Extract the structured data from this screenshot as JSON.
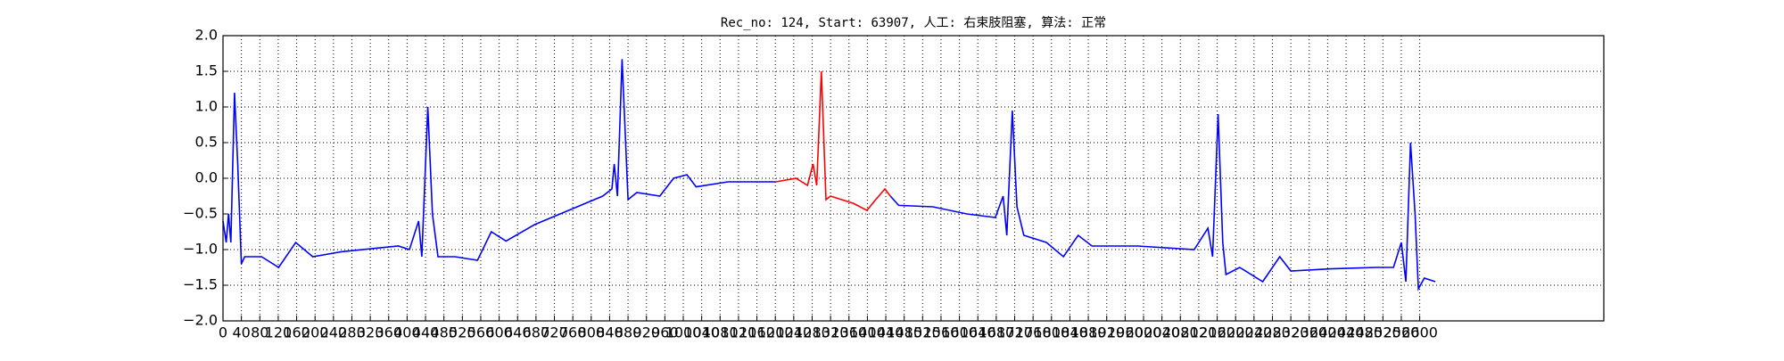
{
  "chart_data": {
    "type": "line",
    "title": "Rec_no: 124, Start: 63907, 人工: 右束肢阻塞, 算法: 正常",
    "xlim": [
      0,
      3000
    ],
    "ylim": [
      -2.0,
      2.0
    ],
    "yticks": [
      {
        "value": -2.0,
        "label": "−2.0"
      },
      {
        "value": -1.5,
        "label": "−1.5"
      },
      {
        "value": -1.0,
        "label": "−1.0"
      },
      {
        "value": -0.5,
        "label": "−0.5"
      },
      {
        "value": 0.0,
        "label": "0.0"
      },
      {
        "value": 0.5,
        "label": "0.5"
      },
      {
        "value": 1.0,
        "label": "1.0"
      },
      {
        "value": 1.5,
        "label": "1.5"
      },
      {
        "value": 2.0,
        "label": "2.0"
      }
    ],
    "xticks": [
      0,
      40,
      80,
      120,
      160,
      200,
      240,
      280,
      320,
      360,
      400,
      440,
      480,
      520,
      560,
      600,
      640,
      680,
      720,
      760,
      800,
      840,
      880,
      920,
      960,
      1000,
      1040,
      1080,
      1120,
      1160,
      1200,
      1240,
      1280,
      1320,
      1360,
      1400,
      1440,
      1480,
      1520,
      1560,
      1600,
      1640,
      1680,
      1720,
      1760,
      1800,
      1840,
      1880,
      1920,
      1960,
      2000,
      2040,
      2080,
      2120,
      2160,
      2200,
      2240,
      2280,
      2320,
      2360,
      2400,
      2440,
      2480,
      2520,
      2560,
      2600
    ],
    "grid": true,
    "series": [
      {
        "color": "#0000ff",
        "x": [
          0,
          7,
          12,
          17,
          25,
          32,
          40,
          47,
          84,
          121,
          158,
          195,
          257,
          381,
          405,
          425,
          432,
          445,
          455,
          467,
          504,
          553,
          583,
          615,
          677,
          751,
          825,
          845,
          850,
          857,
          867,
          880,
          899,
          949,
          979,
          1008,
          1028,
          1097,
          1201,
          null,
          1450,
          1468,
          1542,
          1616,
          1678,
          1695,
          1703,
          1715,
          1725,
          1740,
          1789,
          1826,
          1858,
          1888,
          1987,
          2110,
          2140,
          2150,
          2162,
          2172,
          2179,
          2209,
          2259,
          2296,
          2320,
          2407,
          2506,
          2543,
          2560,
          2570,
          2580,
          2590,
          2597,
          2610,
          2634
        ],
        "values": [
          -0.6,
          -0.9,
          -0.5,
          -0.9,
          1.2,
          0.2,
          -1.2,
          -1.1,
          -1.1,
          -1.25,
          -0.9,
          -1.1,
          -1.03,
          -0.95,
          -1.0,
          -0.6,
          -1.1,
          1.0,
          -0.5,
          -1.1,
          -1.1,
          -1.15,
          -0.75,
          -0.88,
          -0.65,
          -0.45,
          -0.25,
          -0.15,
          0.2,
          -0.25,
          1.67,
          -0.3,
          -0.2,
          -0.25,
          0.0,
          0.05,
          -0.12,
          -0.05,
          -0.05,
          null,
          -0.25,
          -0.38,
          -0.4,
          -0.5,
          -0.55,
          -0.25,
          -0.8,
          0.95,
          -0.4,
          -0.8,
          -0.9,
          -1.1,
          -0.8,
          -0.95,
          -0.95,
          -1.0,
          -0.7,
          -1.1,
          0.9,
          -0.9,
          -1.35,
          -1.25,
          -1.45,
          -1.1,
          -1.3,
          -1.27,
          -1.25,
          -1.25,
          -0.9,
          -1.45,
          0.5,
          -0.5,
          -1.55,
          -1.4,
          -1.45
        ]
      },
      {
        "color": "#ff0000",
        "x": [
          1201,
          1245,
          1270,
          1282,
          1290,
          1300,
          1310,
          1320,
          1369,
          1399,
          1418,
          1438,
          1450
        ],
        "values": [
          -0.05,
          0.0,
          -0.1,
          0.2,
          -0.1,
          1.5,
          -0.3,
          -0.25,
          -0.35,
          -0.45,
          -0.3,
          -0.15,
          -0.25
        ]
      }
    ]
  }
}
